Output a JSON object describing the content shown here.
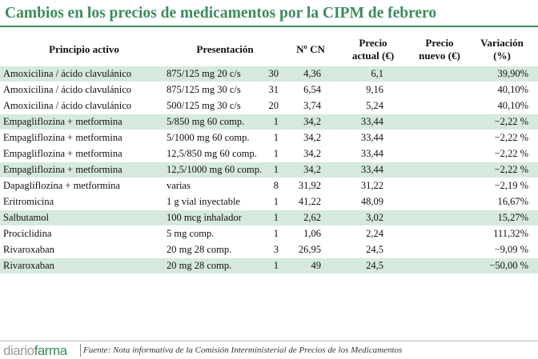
{
  "title": "Cambios en los precios de medicamentos por la CIPM de febrero",
  "table": {
    "header": [
      [
        "Principio activo"
      ],
      [
        "Presentación"
      ],
      [
        "Nº CN"
      ],
      [
        "Precio",
        "actual (€)"
      ],
      [
        "Precio",
        "nuevo (€)"
      ],
      [
        "Variación",
        "(%)"
      ]
    ],
    "highlight_rows": [
      0,
      3,
      6,
      9,
      12
    ],
    "rows": [
      [
        "Amoxicilina / ácido clavulánico",
        "875/125 mg 20 c/s",
        "30",
        "4,36",
        "6,1",
        "39,90%"
      ],
      [
        "Amoxicilina / ácido clavulánico",
        "875/125 mg 30 c/s",
        "31",
        "6,54",
        "9,16",
        "40,10%"
      ],
      [
        "Amoxicilina / ácido clavulánico",
        "500/125 mg 30 c/s",
        "20",
        "3,74",
        "5,24",
        "40,10%"
      ],
      [
        "Empagliflozina + metformina",
        "5/850 mg 60 comp.",
        "1",
        "34,2",
        "33,44",
        "−2,22 %"
      ],
      [
        "Empagliflozina + metformina",
        "5/1000 mg 60 comp.",
        "1",
        "34,2",
        "33,44",
        "−2,22 %"
      ],
      [
        "Empagliflozina + metformina",
        "12,5/850 mg 60 comp.",
        "1",
        "34,2",
        "33,44",
        "−2,22 %"
      ],
      [
        "Empagliflozina + metformina",
        "12,5/1000 mg 60 comp.",
        "1",
        "34,2",
        "33,44",
        "−2,22 %"
      ],
      [
        "Dapagliflozina + metformina",
        "varias",
        "8",
        "31,92",
        "31,22",
        "−2,19 %"
      ],
      [
        "Eritromicina",
        "1 g vial inyectable",
        "1",
        "41,22",
        "48,09",
        "16,67%"
      ],
      [
        "Salbutamol",
        "100 mcg inhalador",
        "1",
        "2,62",
        "3,02",
        "15,27%"
      ],
      [
        "Prociclidina",
        "5 mg comp.",
        "1",
        "1,06",
        "2,24",
        "111,32%"
      ],
      [
        "Rivaroxaban",
        "20 mg 28 comp.",
        "3",
        "26,95",
        "24,5",
        "−9,09 %"
      ],
      [
        "Rivaroxaban",
        "20 mg 28 comp.",
        "1",
        "49",
        "24,5",
        "−50,00 %"
      ]
    ]
  },
  "footer": {
    "logo": [
      "diario",
      "farma"
    ],
    "source": "Fuente: Nota informativa de la Comisión Interministerial de Precios de los Medicamentos"
  }
}
